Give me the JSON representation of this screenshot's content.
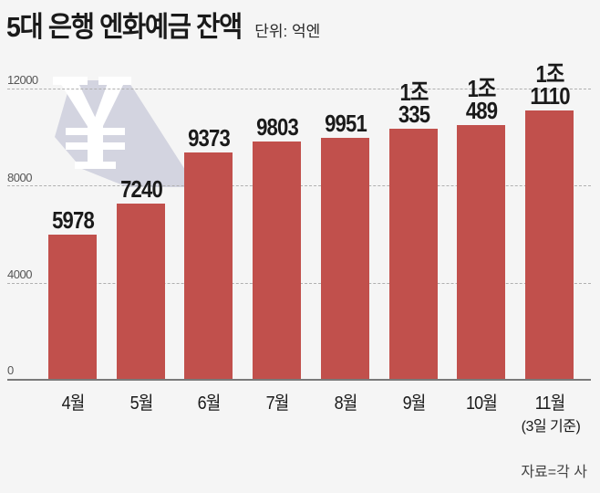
{
  "header": {
    "title": "5대 은행 엔화예금 잔액",
    "unit": "단위: 억엔"
  },
  "decoration": {
    "icon": "yen-icon",
    "symbol": "¥"
  },
  "footer": {
    "source": "자료=각 사"
  },
  "colors": {
    "bar": "#c1504c",
    "background": "#f5f5f5",
    "shadow": "#d3d4e0"
  },
  "chart_data": {
    "type": "bar",
    "title": "5대 은행 엔화예금 잔액",
    "subtitle": "단위: 억엔",
    "xlabel": "",
    "ylabel": "",
    "ylim": [
      0,
      12000
    ],
    "yticks": [
      "0",
      "4000",
      "8000",
      "12000"
    ],
    "grid": true,
    "legend": null,
    "categories": [
      "4월",
      "5월",
      "6월",
      "7월",
      "8월",
      "9월",
      "10월",
      "11월"
    ],
    "category_notes": {
      "11월": "(3일 기준)"
    },
    "values": [
      5978,
      7240,
      9373,
      9803,
      9951,
      10335,
      10489,
      11110
    ],
    "data_labels": [
      {
        "top": "",
        "bottom": "5978"
      },
      {
        "top": "",
        "bottom": "7240"
      },
      {
        "top": "",
        "bottom": "9373"
      },
      {
        "top": "",
        "bottom": "9803"
      },
      {
        "top": "",
        "bottom": "9951"
      },
      {
        "top": "1조",
        "bottom": "335"
      },
      {
        "top": "1조",
        "bottom": "489"
      },
      {
        "top": "1조",
        "bottom": "1110"
      }
    ],
    "annotations": [
      "자료=각 사"
    ]
  }
}
